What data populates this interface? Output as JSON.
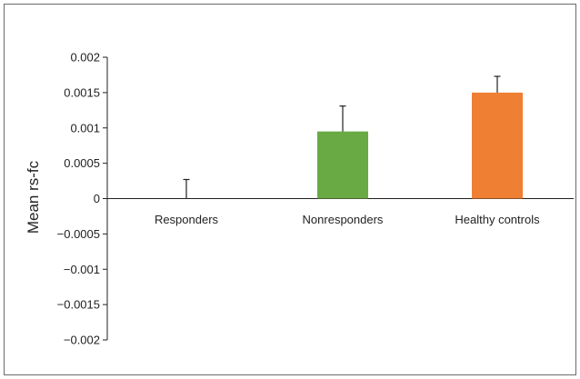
{
  "chart_data": {
    "type": "bar",
    "categories": [
      "Responders",
      "Nonresponders",
      "Healthy controls"
    ],
    "values": [
      0,
      0.00095,
      0.0015
    ],
    "error_upper": [
      0.00027,
      0.00131,
      0.00173
    ],
    "colors": [
      "#ffffff",
      "#6aaa45",
      "#ef7f33"
    ],
    "ylabel": "Mean rs-fc",
    "ylim": [
      -0.002,
      0.002
    ],
    "yticks": [
      0.002,
      0.0015,
      0.001,
      0.0005,
      0,
      -0.0005,
      -0.001,
      -0.0015,
      -0.002
    ],
    "ytick_labels": [
      "0.002",
      "0.0015",
      "0.001",
      "0.0005",
      "0",
      "−0.0005",
      "−0.001",
      "−0.0015",
      "−0.002"
    ],
    "grid": false
  }
}
